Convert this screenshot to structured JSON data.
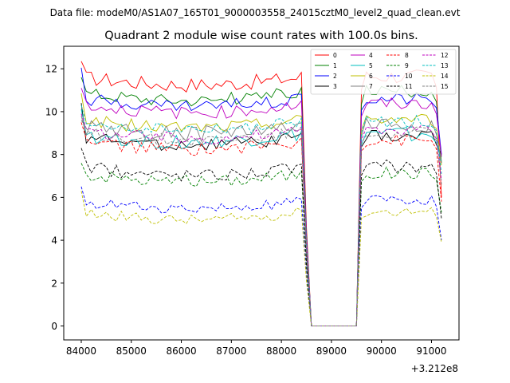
{
  "chart_data": {
    "type": "line",
    "suptitle": "Data file: modeM0/AS1A07_165T01_9000003558_24015cztM0_level2_quad_clean.evt",
    "title": "Quadrant 2 module wise count rates with 100.0s bins.",
    "xlabel": "",
    "ylabel": "",
    "x_offset_label": "+3.212e8",
    "xlim": [
      83650,
      91550
    ],
    "ylim": [
      -0.65,
      13.05
    ],
    "xticks": [
      84000,
      85000,
      86000,
      87000,
      88000,
      89000,
      90000,
      91000
    ],
    "yticks": [
      0,
      2,
      4,
      6,
      8,
      10,
      12
    ],
    "grid": false,
    "legend_position": "top-right",
    "x_start": 84000,
    "x_step": 100,
    "gap_start_index": 46,
    "gap_end_index": 56,
    "n_points": 73,
    "series": [
      {
        "name": "0",
        "color": "#ff0000",
        "dash": "solid",
        "base": 11.6,
        "noise": 0.35,
        "first": 12.35,
        "end": 6.0
      },
      {
        "name": "1",
        "color": "#008000",
        "dash": "solid",
        "base": 10.9,
        "noise": 0.3,
        "first": 11.6,
        "end": 7.6
      },
      {
        "name": "2",
        "color": "#0000ff",
        "dash": "solid",
        "base": 10.6,
        "noise": 0.3,
        "first": 12.05,
        "end": 8.0
      },
      {
        "name": "3",
        "color": "#000000",
        "dash": "solid",
        "base": 8.8,
        "noise": 0.3,
        "first": 10.4,
        "end": 8.0
      },
      {
        "name": "4",
        "color": "#bf00bf",
        "dash": "solid",
        "base": 10.3,
        "noise": 0.3,
        "first": 11.1,
        "end": 7.9
      },
      {
        "name": "5",
        "color": "#00bfbf",
        "dash": "solid",
        "base": 8.9,
        "noise": 0.35,
        "first": 10.1,
        "end": 7.7
      },
      {
        "name": "6",
        "color": "#bfbf00",
        "dash": "solid",
        "base": 9.6,
        "noise": 0.3,
        "first": 10.85,
        "end": 7.5
      },
      {
        "name": "7",
        "color": "#808080",
        "dash": "solid",
        "base": 9.3,
        "noise": 0.4,
        "first": 9.8,
        "end": 7.6
      },
      {
        "name": "8",
        "color": "#ff0000",
        "dash": "dashed",
        "base": 8.6,
        "noise": 0.3,
        "first": 9.5,
        "end": 5.8
      },
      {
        "name": "9",
        "color": "#008000",
        "dash": "dashed",
        "base": 7.1,
        "noise": 0.3,
        "first": 7.6,
        "end": 5.3
      },
      {
        "name": "10",
        "color": "#0000ff",
        "dash": "dashed",
        "base": 5.8,
        "noise": 0.25,
        "first": 6.5,
        "end": 4.0
      },
      {
        "name": "11",
        "color": "#000000",
        "dash": "dashed",
        "base": 7.4,
        "noise": 0.3,
        "first": 8.3,
        "end": 5.0
      },
      {
        "name": "12",
        "color": "#bf00bf",
        "dash": "dashed",
        "base": 9.1,
        "noise": 0.3,
        "first": 9.9,
        "end": 6.8
      },
      {
        "name": "13",
        "color": "#00bfbf",
        "dash": "dashed",
        "base": 9.5,
        "noise": 0.3,
        "first": 10.3,
        "end": 7.1
      },
      {
        "name": "14",
        "color": "#bfbf00",
        "dash": "dashed",
        "base": 5.3,
        "noise": 0.25,
        "first": 6.3,
        "end": 3.9
      },
      {
        "name": "15",
        "color": "#808080",
        "dash": "dashed",
        "base": 9.0,
        "noise": 0.3,
        "first": 9.6,
        "end": 6.6
      }
    ]
  }
}
